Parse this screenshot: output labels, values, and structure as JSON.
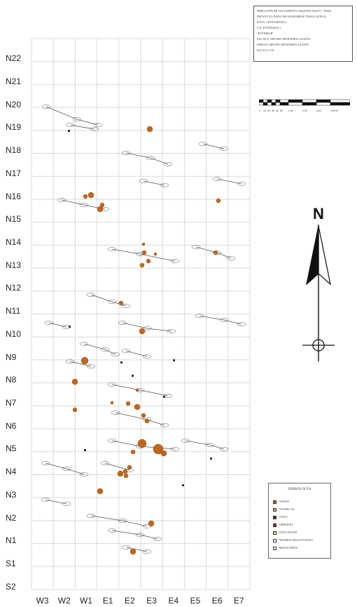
{
  "title_block": {
    "lines": [
      "DIRECCIÓN DE SALVAMENTO ARQUEOLÓGICO - INAH",
      "PROYECTO: PATIO DE MANIOBRAS TEPALCATES II",
      "SITIO: CHOCONEZTLI",
      "U.E. EXTENSIVA 1",
      "\"EXTERIOR\"",
      "EXCAVÓ: ARTURO MONTEROS GUIJÓN",
      "DIBUJÓ: ARTURO MONTEROS GUIJÓN",
      "ESCALA 1:50"
    ]
  },
  "grid": {
    "rows": [
      "N22",
      "N21",
      "N20",
      "N19",
      "N18",
      "N17",
      "N16",
      "N15",
      "N14",
      "N13",
      "N12",
      "N11",
      "N10",
      "N9",
      "N8",
      "N7",
      "N6",
      "N5",
      "N4",
      "N3",
      "N2",
      "N1",
      "S1",
      "S2"
    ],
    "columns": [
      "W3",
      "W2",
      "W1",
      "E1",
      "E2",
      "E3",
      "E4",
      "E5",
      "E6",
      "E7"
    ]
  },
  "scale_bar": {
    "labels": [
      "0",
      "10",
      "20",
      "30",
      "40",
      "50",
      "1.00",
      "2.00",
      "3.00",
      "4.00 M"
    ]
  },
  "north_arrow": {
    "label": "N",
    "icon": "north-arrow-icon"
  },
  "legend": {
    "title": "SIMBOLOGÍA",
    "items": [
      {
        "label": "VASIJAS",
        "color": "#c0671f"
      },
      {
        "label": "FIGURILLAS",
        "color": "#e3a060"
      },
      {
        "label": "LÍTICA",
        "color": "#444444"
      },
      {
        "label": "OBSIDIANA",
        "color": "#b22222"
      },
      {
        "label": "LÍTICA PULIDA",
        "color": "#e6d870"
      },
      {
        "label": "MATERIAL MALACOLÓGICO",
        "color": "#ffffff"
      },
      {
        "label": "RESTOS ÓSEOS",
        "color": "#ffffff"
      }
    ]
  },
  "colors": {
    "grid_line": "#d9d9d9",
    "artifact": "#c0671f",
    "outline": "#555555"
  }
}
